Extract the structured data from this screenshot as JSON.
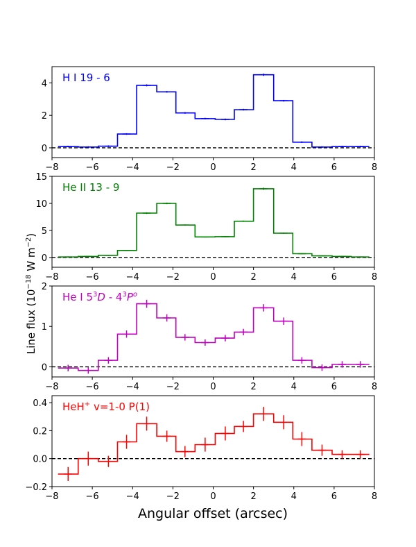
{
  "figure": {
    "xlabel": "Angular offset (arcsec)",
    "ylabel_main": "Line flux (10",
    "ylabel_exp": "−18",
    "ylabel_rest": " W m",
    "ylabel_exp2": "−2",
    "ylabel_close": ")"
  },
  "chart_data": [
    {
      "type": "line",
      "drawstyle": "steps-mid with error bars",
      "color": "#0000ff",
      "title_parts": [
        {
          "t": "H I 19 - 6",
          "s": "normal"
        }
      ],
      "x": [
        -7.2,
        -6.2,
        -5.2,
        -4.3,
        -3.3,
        -2.3,
        -1.4,
        -0.4,
        0.6,
        1.5,
        2.5,
        3.5,
        4.4,
        5.4,
        6.4,
        7.3
      ],
      "y": [
        0.08,
        0.05,
        0.1,
        0.85,
        3.85,
        3.45,
        2.15,
        1.8,
        1.75,
        2.35,
        4.5,
        2.9,
        0.35,
        0.05,
        0.08,
        0.08
      ],
      "yerr": [
        0.05,
        0.05,
        0.05,
        0.05,
        0.06,
        0.05,
        0.05,
        0.05,
        0.05,
        0.05,
        0.07,
        0.05,
        0.05,
        0.05,
        0.05,
        0.05
      ],
      "xlim": [
        -8,
        8
      ],
      "ylim": [
        -0.6,
        5.0
      ],
      "xticks": [
        -8,
        -6,
        -4,
        -2,
        0,
        2,
        4,
        6,
        8
      ],
      "yticks": [
        0,
        2,
        4
      ]
    },
    {
      "type": "line",
      "drawstyle": "steps-mid with error bars",
      "color": "#008000",
      "title_parts": [
        {
          "t": "He II 13 - 9",
          "s": "normal"
        }
      ],
      "x": [
        -7.2,
        -6.2,
        -5.2,
        -4.3,
        -3.3,
        -2.3,
        -1.4,
        -0.4,
        0.6,
        1.5,
        2.5,
        3.5,
        4.4,
        5.4,
        6.4,
        7.3
      ],
      "y": [
        0.1,
        0.2,
        0.4,
        1.3,
        8.2,
        10.0,
        6.0,
        3.8,
        3.85,
        6.7,
        12.7,
        4.5,
        0.7,
        0.3,
        0.2,
        0.1
      ],
      "yerr": [
        0.1,
        0.1,
        0.1,
        0.1,
        0.15,
        0.15,
        0.12,
        0.1,
        0.1,
        0.12,
        0.2,
        0.12,
        0.1,
        0.1,
        0.1,
        0.1
      ],
      "xlim": [
        -8,
        8
      ],
      "ylim": [
        -1.8,
        15.0
      ],
      "xticks": [
        -8,
        -6,
        -4,
        -2,
        0,
        2,
        4,
        6,
        8
      ],
      "yticks": [
        0,
        5,
        10,
        15
      ]
    },
    {
      "type": "line",
      "drawstyle": "steps-mid with error bars",
      "color": "#bf00bf",
      "title_parts": [
        {
          "t": "He I 5",
          "s": "normal"
        },
        {
          "t": "3",
          "s": "sup"
        },
        {
          "t": "D",
          "s": "italic"
        },
        {
          "t": " - 4",
          "s": "normal"
        },
        {
          "t": "3",
          "s": "sup"
        },
        {
          "t": "P",
          "s": "italic"
        },
        {
          "t": "o",
          "s": "supitalic"
        }
      ],
      "x": [
        -7.2,
        -6.2,
        -5.2,
        -4.3,
        -3.3,
        -2.3,
        -1.4,
        -0.4,
        0.6,
        1.5,
        2.5,
        3.5,
        4.4,
        5.4,
        6.4,
        7.3
      ],
      "y": [
        -0.03,
        -0.09,
        0.16,
        0.81,
        1.56,
        1.21,
        0.73,
        0.6,
        0.71,
        0.86,
        1.46,
        1.13,
        0.16,
        -0.02,
        0.06,
        0.06
      ],
      "yerr": [
        0.08,
        0.08,
        0.08,
        0.09,
        0.1,
        0.09,
        0.08,
        0.08,
        0.08,
        0.08,
        0.09,
        0.09,
        0.08,
        0.08,
        0.08,
        0.08
      ],
      "xlim": [
        -8,
        8
      ],
      "ylim": [
        -0.25,
        2.0
      ],
      "xticks": [
        -8,
        -6,
        -4,
        -2,
        0,
        2,
        4,
        6,
        8
      ],
      "yticks": [
        0,
        1,
        2
      ]
    },
    {
      "type": "line",
      "drawstyle": "steps-mid with error bars",
      "color": "#ff0000",
      "title_parts": [
        {
          "t": "HeH",
          "s": "normal"
        },
        {
          "t": "+",
          "s": "sup"
        },
        {
          "t": " v=1-0 P(1)",
          "s": "normal"
        }
      ],
      "x": [
        -7.2,
        -6.2,
        -5.2,
        -4.3,
        -3.3,
        -2.3,
        -1.4,
        -0.4,
        0.6,
        1.5,
        2.5,
        3.5,
        4.4,
        5.4,
        6.4,
        7.3
      ],
      "y": [
        -0.11,
        0.0,
        -0.02,
        0.12,
        0.25,
        0.16,
        0.05,
        0.1,
        0.18,
        0.23,
        0.32,
        0.26,
        0.14,
        0.06,
        0.03,
        0.03
      ],
      "yerr": [
        0.05,
        0.05,
        0.04,
        0.05,
        0.05,
        0.04,
        0.04,
        0.05,
        0.05,
        0.04,
        0.05,
        0.05,
        0.05,
        0.04,
        0.03,
        0.03
      ],
      "xlim": [
        -8,
        8
      ],
      "ylim": [
        -0.2,
        0.45
      ],
      "xticks": [
        -8,
        -6,
        -4,
        -2,
        0,
        2,
        4,
        6,
        8
      ],
      "yticks": [
        -0.2,
        0.0,
        0.2,
        0.4
      ]
    }
  ]
}
